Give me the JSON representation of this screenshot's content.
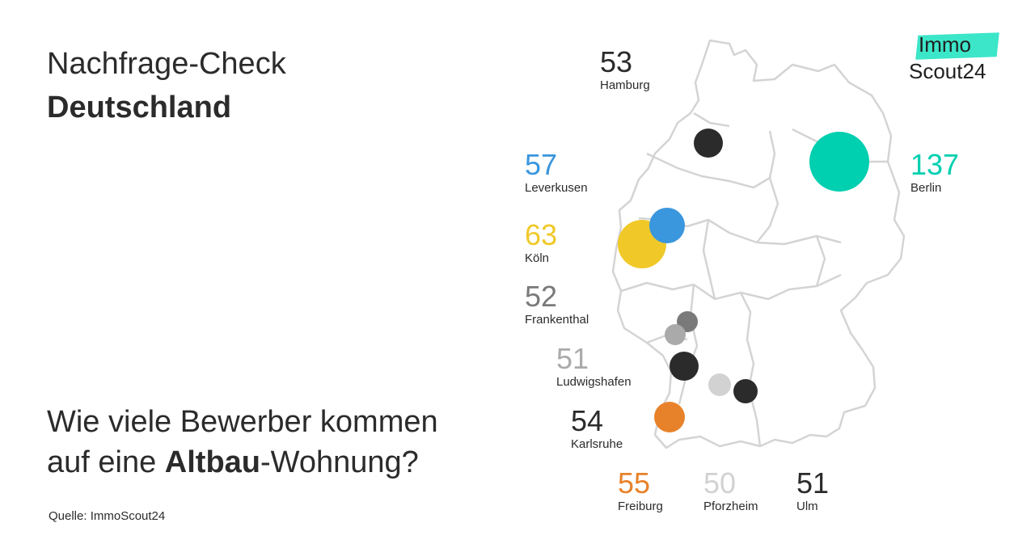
{
  "header": {
    "title_line1": "Nachfrage-Check",
    "title_line2": "Deutschland"
  },
  "question": {
    "part1": "Wie viele Bewerber kommen",
    "part2_pre": "auf eine ",
    "part2_bold": "Altbau",
    "part2_post": "-Wohnung?"
  },
  "source": "Quelle: ImmoScout24",
  "logo": {
    "top": "Immo",
    "bottom": "Scout24",
    "accent": "#3ce6c8"
  },
  "cities": [
    {
      "id": "hamburg",
      "name": "Hamburg",
      "value": "53",
      "color": "#2b2b2b"
    },
    {
      "id": "leverkusen",
      "name": "Leverkusen",
      "value": "57",
      "color": "#3a96dd"
    },
    {
      "id": "koeln",
      "name": "Köln",
      "value": "63",
      "color": "#f0c929"
    },
    {
      "id": "frankenthal",
      "name": "Frankenthal",
      "value": "52",
      "color": "#7a7a7a"
    },
    {
      "id": "ludwigshafen",
      "name": "Ludwigshafen",
      "value": "51",
      "color": "#aaaaaa"
    },
    {
      "id": "karlsruhe",
      "name": "Karlsruhe",
      "value": "54",
      "color": "#2b2b2b"
    },
    {
      "id": "freiburg",
      "name": "Freiburg",
      "value": "55",
      "color": "#e8822a"
    },
    {
      "id": "pforzheim",
      "name": "Pforzheim",
      "value": "50",
      "color": "#d2d2d2"
    },
    {
      "id": "ulm",
      "name": "Ulm",
      "value": "51",
      "color": "#2b2b2b"
    },
    {
      "id": "berlin",
      "name": "Berlin",
      "value": "137",
      "color": "#00cfb0"
    }
  ]
}
